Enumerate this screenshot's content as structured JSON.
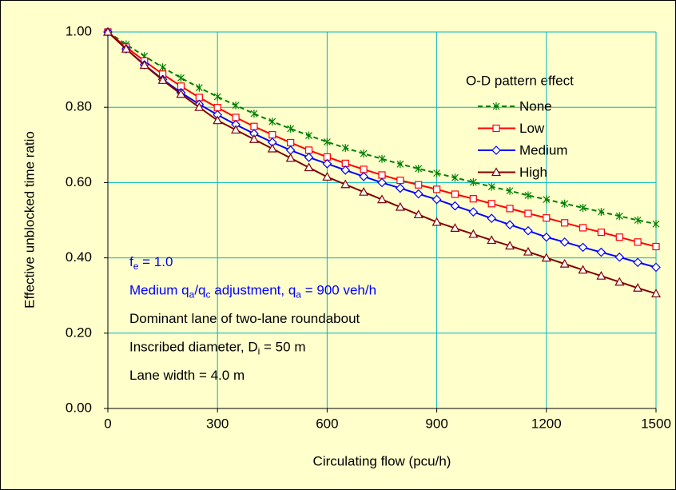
{
  "chart_data": {
    "type": "line",
    "xlabel": "Circulating flow (pcu/h)",
    "ylabel": "Effective unblocked time ratio",
    "x": [
      0,
      50,
      100,
      150,
      200,
      250,
      300,
      350,
      400,
      450,
      500,
      550,
      600,
      650,
      700,
      750,
      800,
      850,
      900,
      950,
      1000,
      1050,
      1100,
      1150,
      1200,
      1250,
      1300,
      1350,
      1400,
      1450,
      1500
    ],
    "xlim": [
      0,
      1500
    ],
    "xticks": [
      0,
      300,
      600,
      900,
      1200,
      1500
    ],
    "ylim": [
      0,
      1
    ],
    "yticks": [
      {
        "value": 0,
        "label": "0.00"
      },
      {
        "value": 0.2,
        "label": "0.20"
      },
      {
        "value": 0.4,
        "label": "0.40"
      },
      {
        "value": 0.6,
        "label": "0.60"
      },
      {
        "value": 0.8,
        "label": "0.80"
      },
      {
        "value": 1,
        "label": "1.00"
      }
    ],
    "grid": true,
    "grid_color": "#00b4c8",
    "background": "#ffffcc",
    "legend_title": "O-D pattern effect",
    "legend_position": "upper right",
    "series": [
      {
        "name": "None",
        "color": "#008000",
        "line_style": "dashed",
        "marker": "x",
        "values": [
          1.0,
          0.967,
          0.936,
          0.906,
          0.878,
          0.852,
          0.828,
          0.805,
          0.783,
          0.762,
          0.743,
          0.725,
          0.708,
          0.692,
          0.677,
          0.663,
          0.649,
          0.637,
          0.625,
          0.613,
          0.601,
          0.589,
          0.578,
          0.566,
          0.555,
          0.544,
          0.533,
          0.522,
          0.511,
          0.5,
          0.49
        ]
      },
      {
        "name": "Low",
        "color": "#ff0000",
        "line_style": "solid",
        "marker": "square",
        "values": [
          1.0,
          0.96,
          0.923,
          0.888,
          0.856,
          0.826,
          0.799,
          0.773,
          0.749,
          0.727,
          0.706,
          0.686,
          0.668,
          0.651,
          0.635,
          0.62,
          0.606,
          0.594,
          0.582,
          0.569,
          0.557,
          0.544,
          0.531,
          0.518,
          0.506,
          0.493,
          0.48,
          0.468,
          0.455,
          0.442,
          0.43
        ]
      },
      {
        "name": "Medium",
        "color": "#0000ff",
        "line_style": "solid",
        "marker": "diamond",
        "values": [
          1.0,
          0.955,
          0.913,
          0.874,
          0.839,
          0.808,
          0.78,
          0.754,
          0.73,
          0.707,
          0.686,
          0.667,
          0.65,
          0.633,
          0.616,
          0.6,
          0.585,
          0.57,
          0.555,
          0.538,
          0.522,
          0.505,
          0.488,
          0.472,
          0.455,
          0.442,
          0.428,
          0.415,
          0.402,
          0.388,
          0.375
        ]
      },
      {
        "name": "High",
        "color": "#800000",
        "line_style": "solid",
        "marker": "triangle",
        "values": [
          1.0,
          0.955,
          0.912,
          0.872,
          0.835,
          0.8,
          0.765,
          0.74,
          0.715,
          0.69,
          0.665,
          0.64,
          0.615,
          0.595,
          0.575,
          0.555,
          0.535,
          0.515,
          0.495,
          0.479,
          0.463,
          0.447,
          0.432,
          0.416,
          0.4,
          0.384,
          0.368,
          0.352,
          0.336,
          0.32,
          0.305
        ]
      }
    ],
    "annotations": [
      {
        "color": "#0000ff",
        "parts": [
          {
            "text": "f"
          },
          {
            "sub": "e"
          },
          {
            "text": " = 1.0"
          }
        ]
      },
      {
        "color": "#0000ff",
        "parts": [
          {
            "text": "Medium q"
          },
          {
            "sub": "a"
          },
          {
            "text": "/q"
          },
          {
            "sub": "c"
          },
          {
            "text": " adjustment, q"
          },
          {
            "sub": "a"
          },
          {
            "text": " = 900 veh/h"
          }
        ]
      },
      {
        "color": "#000000",
        "parts": [
          {
            "text": "Dominant lane of two-lane roundabout"
          }
        ]
      },
      {
        "color": "#000000",
        "parts": [
          {
            "text": "Inscribed diameter, D"
          },
          {
            "sub": "i"
          },
          {
            "text": " = 50 m"
          }
        ]
      },
      {
        "color": "#000000",
        "parts": [
          {
            "text": "Lane width = 4.0 m"
          }
        ]
      }
    ]
  }
}
